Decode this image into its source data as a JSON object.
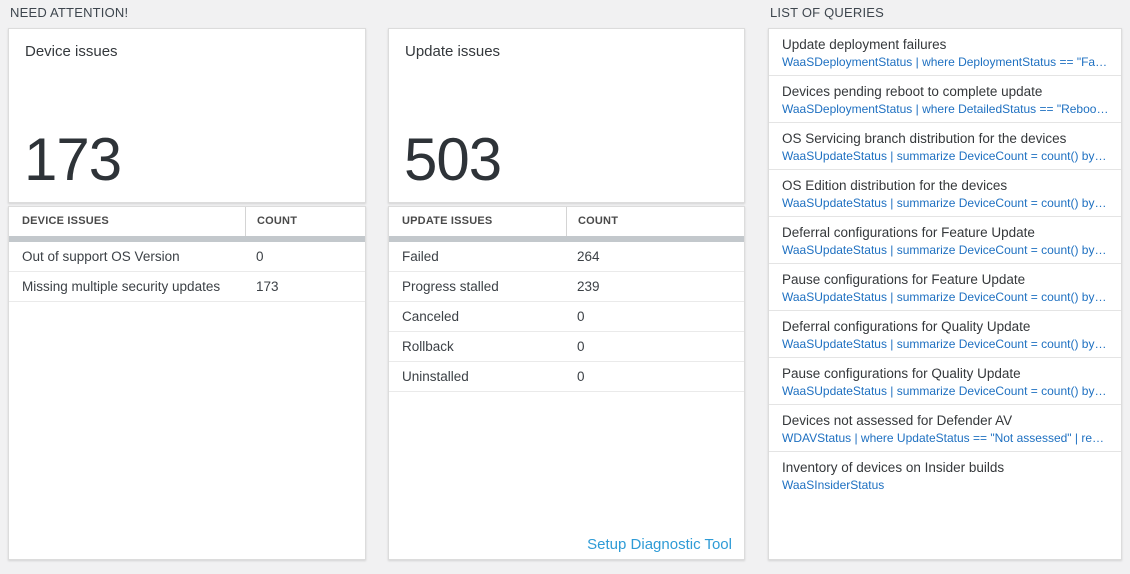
{
  "colors": {
    "page_bg": "#f1f1f2",
    "query_link_blue": "#1e70c1",
    "setup_link_blue": "#2e9bd6",
    "big_number_color": "#2e3338",
    "table_scrollbar_gray": "#c3c8cc"
  },
  "need_attention": {
    "header": "NEED ATTENTION!",
    "cards": [
      {
        "title": "Device issues",
        "big_number": "173",
        "table": {
          "columns": [
            "DEVICE ISSUES",
            "COUNT"
          ],
          "rows": [
            {
              "label": "Out of support OS Version",
              "count": "0"
            },
            {
              "label": "Missing multiple security updates",
              "count": "173"
            }
          ]
        }
      },
      {
        "title": "Update issues",
        "big_number": "503",
        "table": {
          "columns": [
            "UPDATE ISSUES",
            "COUNT"
          ],
          "rows": [
            {
              "label": "Failed",
              "count": "264"
            },
            {
              "label": "Progress stalled",
              "count": "239"
            },
            {
              "label": "Canceled",
              "count": "0"
            },
            {
              "label": "Rollback",
              "count": "0"
            },
            {
              "label": "Uninstalled",
              "count": "0"
            }
          ]
        },
        "footer_link": "Setup Diagnostic Tool"
      }
    ]
  },
  "queries": {
    "header": "LIST OF QUERIES",
    "items": [
      {
        "title": "Update deployment failures",
        "query": "WaaSDeploymentStatus | where DeploymentStatus == \"Failed\" |..."
      },
      {
        "title": "Devices pending reboot to complete update",
        "query": "WaaSDeploymentStatus | where DetailedStatus == \"Reboot pend..."
      },
      {
        "title": "OS Servicing branch distribution for the devices",
        "query": "WaaSUpdateStatus | summarize DeviceCount = count() by OSSer..."
      },
      {
        "title": "OS Edition distribution for the devices",
        "query": "WaaSUpdateStatus | summarize DeviceCount = count() by OSEdit..."
      },
      {
        "title": "Deferral configurations for Feature Update",
        "query": "WaaSUpdateStatus | summarize DeviceCount = count() by Featur..."
      },
      {
        "title": "Pause configurations for Feature Update",
        "query": "WaaSUpdateStatus | summarize DeviceCount = count() by Featur..."
      },
      {
        "title": "Deferral configurations for Quality Update",
        "query": "WaaSUpdateStatus | summarize DeviceCount = count() by Qualit..."
      },
      {
        "title": "Pause configurations for Quality Update",
        "query": "WaaSUpdateStatus | summarize DeviceCount = count() by Qualit..."
      },
      {
        "title": "Devices not assessed for Defender AV",
        "query": "WDAVStatus | where UpdateStatus == \"Not assessed\" | render ta..."
      },
      {
        "title": "Inventory of devices on Insider builds",
        "query": "WaaSInsiderStatus"
      }
    ]
  }
}
